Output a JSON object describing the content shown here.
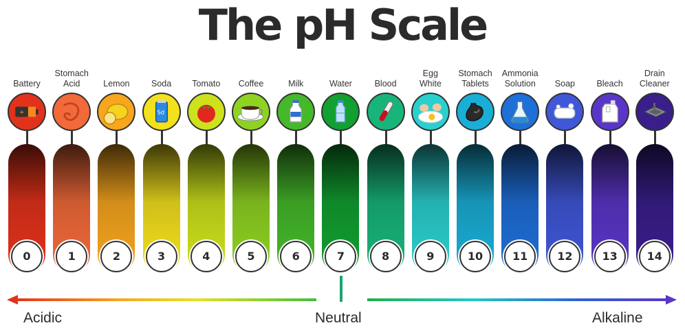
{
  "title": "The pH Scale",
  "scale": [
    {
      "ph": "0",
      "label": [
        "Battery"
      ],
      "icon": "battery-icon",
      "color": "#e3321b"
    },
    {
      "ph": "1",
      "label": [
        "Stomach",
        "Acid"
      ],
      "icon": "stomach-acid-icon",
      "color": "#f26a3a"
    },
    {
      "ph": "2",
      "label": [
        "Lemon"
      ],
      "icon": "lemon-icon",
      "color": "#f7a61e"
    },
    {
      "ph": "3",
      "label": [
        "Soda"
      ],
      "icon": "soda-can-icon",
      "color": "#f4e11e"
    },
    {
      "ph": "4",
      "label": [
        "Tomato"
      ],
      "icon": "tomato-icon",
      "color": "#cde21c"
    },
    {
      "ph": "5",
      "label": [
        "Coffee"
      ],
      "icon": "coffee-cup-icon",
      "color": "#8fd322"
    },
    {
      "ph": "6",
      "label": [
        "Milk"
      ],
      "icon": "milk-bottle-icon",
      "color": "#45b92a"
    },
    {
      "ph": "7",
      "label": [
        "Water"
      ],
      "icon": "water-bottle-icon",
      "color": "#12a030"
    },
    {
      "ph": "8",
      "label": [
        "Blood"
      ],
      "icon": "blood-vial-icon",
      "color": "#18b57a"
    },
    {
      "ph": "9",
      "label": [
        "Egg",
        "White"
      ],
      "icon": "egg-icon",
      "color": "#2ad0cf"
    },
    {
      "ph": "10",
      "label": [
        "Stomach",
        "Tablets"
      ],
      "icon": "stomach-tablets-icon",
      "color": "#1aaed6"
    },
    {
      "ph": "11",
      "label": [
        "Ammonia",
        "Solution"
      ],
      "icon": "flask-icon",
      "color": "#1f6fd8"
    },
    {
      "ph": "12",
      "label": [
        "Soap"
      ],
      "icon": "soap-icon",
      "color": "#4057d8"
    },
    {
      "ph": "13",
      "label": [
        "Bleach"
      ],
      "icon": "bleach-jug-icon",
      "color": "#5a36c8"
    },
    {
      "ph": "14",
      "label": [
        "Drain",
        "Cleaner"
      ],
      "icon": "drain-sink-icon",
      "color": "#3a1e8c"
    }
  ],
  "axis": {
    "left": "Acidic",
    "center": "Neutral",
    "right": "Alkaline",
    "left_color": "#e3321b",
    "right_color": "#5a36c8"
  }
}
